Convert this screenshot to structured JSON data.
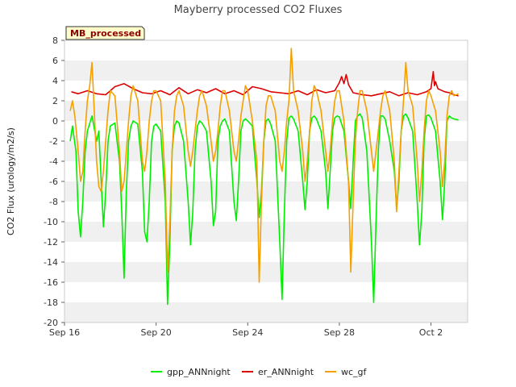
{
  "chart_data": {
    "type": "line",
    "title": "Mayberry processed CO2 Fluxes",
    "xlabel": "",
    "ylabel": "CO2 Flux (urology/m2/s)",
    "badge": "MB_processed",
    "xlim": [
      0,
      17.6
    ],
    "ylim": [
      -20,
      8
    ],
    "y_ticks": [
      -20,
      -18,
      -16,
      -14,
      -12,
      -10,
      -8,
      -6,
      -4,
      -2,
      0,
      2,
      4,
      6,
      8
    ],
    "x_ticks": [
      {
        "label": "Sep 16",
        "value": 0
      },
      {
        "label": "Sep 20",
        "value": 4
      },
      {
        "label": "Sep 24",
        "value": 8
      },
      {
        "label": "Sep 28",
        "value": 12
      },
      {
        "label": "Oct 2",
        "value": 16
      }
    ],
    "series": [
      {
        "name": "gpp_ANNnight",
        "color": "#00ee00",
        "x": [
          0.25,
          0.35,
          0.5,
          0.6,
          0.7,
          0.8,
          0.9,
          1.0,
          1.2,
          1.4,
          1.5,
          1.6,
          1.7,
          1.8,
          1.9,
          2.0,
          2.2,
          2.4,
          2.5,
          2.6,
          2.7,
          2.8,
          2.9,
          3.0,
          3.2,
          3.4,
          3.5,
          3.6,
          3.7,
          3.8,
          3.9,
          4.0,
          4.2,
          4.4,
          4.5,
          4.6,
          4.7,
          4.8,
          4.9,
          5.0,
          5.2,
          5.4,
          5.5,
          5.6,
          5.7,
          5.8,
          5.9,
          6.0,
          6.2,
          6.4,
          6.5,
          6.6,
          6.7,
          6.8,
          6.9,
          7.0,
          7.2,
          7.4,
          7.5,
          7.6,
          7.7,
          7.8,
          7.9,
          8.0,
          8.2,
          8.4,
          8.5,
          8.6,
          8.7,
          8.8,
          8.9,
          9.0,
          9.2,
          9.4,
          9.5,
          9.6,
          9.7,
          9.8,
          9.9,
          10.0,
          10.2,
          10.4,
          10.5,
          10.6,
          10.7,
          10.8,
          10.9,
          11.0,
          11.2,
          11.4,
          11.5,
          11.6,
          11.7,
          11.8,
          11.9,
          12.0,
          12.2,
          12.4,
          12.5,
          12.6,
          12.7,
          12.8,
          12.9,
          13.0,
          13.2,
          13.4,
          13.5,
          13.6,
          13.7,
          13.8,
          13.9,
          14.0,
          14.2,
          14.4,
          14.5,
          14.6,
          14.7,
          14.8,
          14.9,
          15.0,
          15.2,
          15.4,
          15.5,
          15.6,
          15.7,
          15.8,
          15.9,
          16.0,
          16.2,
          16.4,
          16.5,
          16.6,
          16.7,
          16.8,
          16.9,
          17.0,
          17.2
        ],
        "values": [
          -2,
          -0.5,
          -3,
          -9,
          -11.5,
          -8,
          -3,
          -1,
          0.5,
          -2,
          -1,
          -6,
          -10.5,
          -7,
          -2,
          -0.5,
          -0.2,
          -4,
          -9,
          -15.6,
          -7,
          -2,
          -0.5,
          0,
          -0.3,
          -5,
          -11,
          -12,
          -8,
          -2,
          -0.5,
          -0.3,
          -1,
          -8,
          -18.2,
          -12,
          -3,
          -0.5,
          0,
          -0.2,
          -2,
          -8,
          -12.3,
          -9,
          -3,
          -0.5,
          0,
          -0.2,
          -1,
          -6,
          -10.4,
          -9,
          -2,
          -0.5,
          0,
          0.2,
          -1,
          -8,
          -9.9,
          -6,
          -1,
          0,
          0.2,
          0,
          -0.5,
          -6,
          -9.6,
          -7,
          -2,
          0,
          0.2,
          -0.3,
          -2,
          -12,
          -17.7,
          -9,
          -2,
          0.3,
          0.5,
          0.2,
          -1,
          -6,
          -8.8,
          -6,
          -1,
          0.3,
          0.5,
          0.2,
          -1,
          -5,
          -8.7,
          -5,
          -1,
          0.3,
          0.5,
          0.4,
          -1,
          -6,
          -8.7,
          -4,
          0,
          0.5,
          0.7,
          0.3,
          -3,
          -12,
          -18,
          -10,
          -3,
          0.5,
          0.5,
          0.2,
          -2,
          -5,
          -8.7,
          -6,
          -1,
          0.5,
          0.7,
          0.3,
          -1,
          -8,
          -12.3,
          -9,
          -2,
          0.5,
          0.6,
          0.3,
          -1,
          -6,
          -9.8,
          -6,
          0,
          0.5,
          0.3,
          0.2,
          0.1
        ]
      },
      {
        "name": "er_ANNnight",
        "color": "#dd0000",
        "x": [
          0.3,
          0.6,
          1.0,
          1.4,
          1.8,
          2.2,
          2.6,
          3.0,
          3.4,
          3.8,
          4.2,
          4.6,
          5.0,
          5.4,
          5.8,
          6.2,
          6.6,
          7.0,
          7.4,
          7.8,
          8.2,
          8.6,
          9.0,
          9.4,
          9.8,
          10.2,
          10.6,
          11.0,
          11.4,
          11.8,
          12.0,
          12.1,
          12.2,
          12.3,
          12.4,
          12.6,
          13.0,
          13.4,
          13.8,
          14.2,
          14.6,
          15.0,
          15.4,
          15.8,
          16.0,
          16.1,
          16.15,
          16.2,
          16.3,
          16.4,
          16.6,
          16.8,
          17.0,
          17.2
        ],
        "values": [
          2.9,
          2.7,
          3.0,
          2.7,
          2.6,
          3.4,
          3.7,
          3.2,
          2.8,
          2.7,
          3.0,
          2.6,
          3.3,
          2.7,
          3.1,
          2.8,
          3.2,
          2.7,
          3.0,
          2.6,
          3.4,
          3.2,
          2.9,
          2.8,
          2.7,
          3.0,
          2.6,
          3.1,
          2.8,
          3.0,
          3.8,
          4.4,
          3.7,
          4.6,
          3.6,
          2.8,
          2.6,
          2.5,
          2.7,
          2.9,
          2.5,
          2.8,
          2.6,
          2.9,
          3.2,
          4.9,
          3.5,
          3.9,
          3.2,
          3.1,
          2.9,
          2.8,
          2.6,
          2.5
        ]
      },
      {
        "name": "wc_gf",
        "color": "#f5a000",
        "x": [
          0.25,
          0.35,
          0.45,
          0.6,
          0.7,
          0.8,
          0.9,
          1.0,
          1.1,
          1.2,
          1.3,
          1.4,
          1.5,
          1.6,
          1.7,
          1.8,
          1.9,
          2.0,
          2.2,
          2.4,
          2.5,
          2.6,
          2.7,
          2.8,
          2.9,
          3.0,
          3.2,
          3.4,
          3.5,
          3.6,
          3.7,
          3.8,
          3.9,
          4.0,
          4.2,
          4.4,
          4.5,
          4.6,
          4.7,
          4.8,
          4.9,
          5.0,
          5.2,
          5.4,
          5.5,
          5.6,
          5.7,
          5.8,
          5.9,
          6.0,
          6.2,
          6.4,
          6.5,
          6.6,
          6.7,
          6.8,
          6.9,
          7.0,
          7.2,
          7.4,
          7.5,
          7.6,
          7.7,
          7.8,
          7.9,
          8.0,
          8.2,
          8.4,
          8.5,
          8.6,
          8.7,
          8.8,
          8.9,
          9.0,
          9.2,
          9.4,
          9.5,
          9.6,
          9.7,
          9.8,
          9.9,
          10.0,
          10.2,
          10.4,
          10.5,
          10.6,
          10.7,
          10.8,
          10.9,
          11.0,
          11.2,
          11.4,
          11.5,
          11.6,
          11.7,
          11.8,
          11.9,
          12.0,
          12.2,
          12.4,
          12.5,
          12.6,
          12.7,
          12.8,
          12.9,
          13.0,
          13.2,
          13.4,
          13.5,
          13.6,
          13.7,
          13.8,
          13.9,
          14.0,
          14.2,
          14.4,
          14.5,
          14.6,
          14.7,
          14.8,
          14.9,
          15.0,
          15.2,
          15.4,
          15.5,
          15.6,
          15.7,
          15.8,
          15.9,
          16.0,
          16.2,
          16.4,
          16.5,
          16.6,
          16.7,
          16.8,
          16.9,
          17.0,
          17.2
        ],
        "values": [
          1,
          2,
          0.5,
          -3,
          -6,
          -5,
          -1,
          2,
          3.5,
          5.8,
          1,
          -4,
          -6.5,
          -7,
          -5,
          -2,
          1,
          3,
          2.5,
          -3,
          -7,
          -6,
          -3,
          0,
          2.5,
          3.5,
          2,
          -4,
          -5,
          -3,
          0,
          2,
          3,
          3,
          2,
          -6,
          -15,
          -10,
          -3,
          1,
          2.5,
          3,
          1.5,
          -3,
          -4.5,
          -3,
          -1,
          1,
          2.5,
          3,
          1.5,
          -2,
          -4,
          -3,
          -1,
          1.5,
          3,
          3,
          1,
          -3,
          -4,
          -2,
          0.5,
          2,
          3.5,
          3,
          0,
          -4,
          -16,
          -8,
          -2,
          1.5,
          2.5,
          2.5,
          1,
          -4,
          -5,
          -3,
          0,
          2,
          7.2,
          3,
          1,
          -3,
          -6,
          -4,
          -1,
          2,
          3.5,
          3,
          1,
          -3,
          -5,
          -3,
          0,
          2,
          3,
          3,
          0,
          -6,
          -15,
          -8,
          -2,
          1,
          3,
          3,
          1,
          -3,
          -5,
          -3,
          -1,
          1,
          2.5,
          3,
          1,
          -4,
          -9,
          -5,
          -1,
          2,
          5.8,
          3,
          1.5,
          -4,
          -8,
          -5,
          -1,
          2,
          3,
          2.5,
          1,
          -3,
          -6.5,
          -4,
          0.5,
          2.5,
          3,
          2.5,
          2.7
        ]
      }
    ],
    "legend": [
      "gpp_ANNnight",
      "er_ANNnight",
      "wc_gf"
    ],
    "legend_position": "bottom",
    "grid": "alternating horizontal bands"
  }
}
